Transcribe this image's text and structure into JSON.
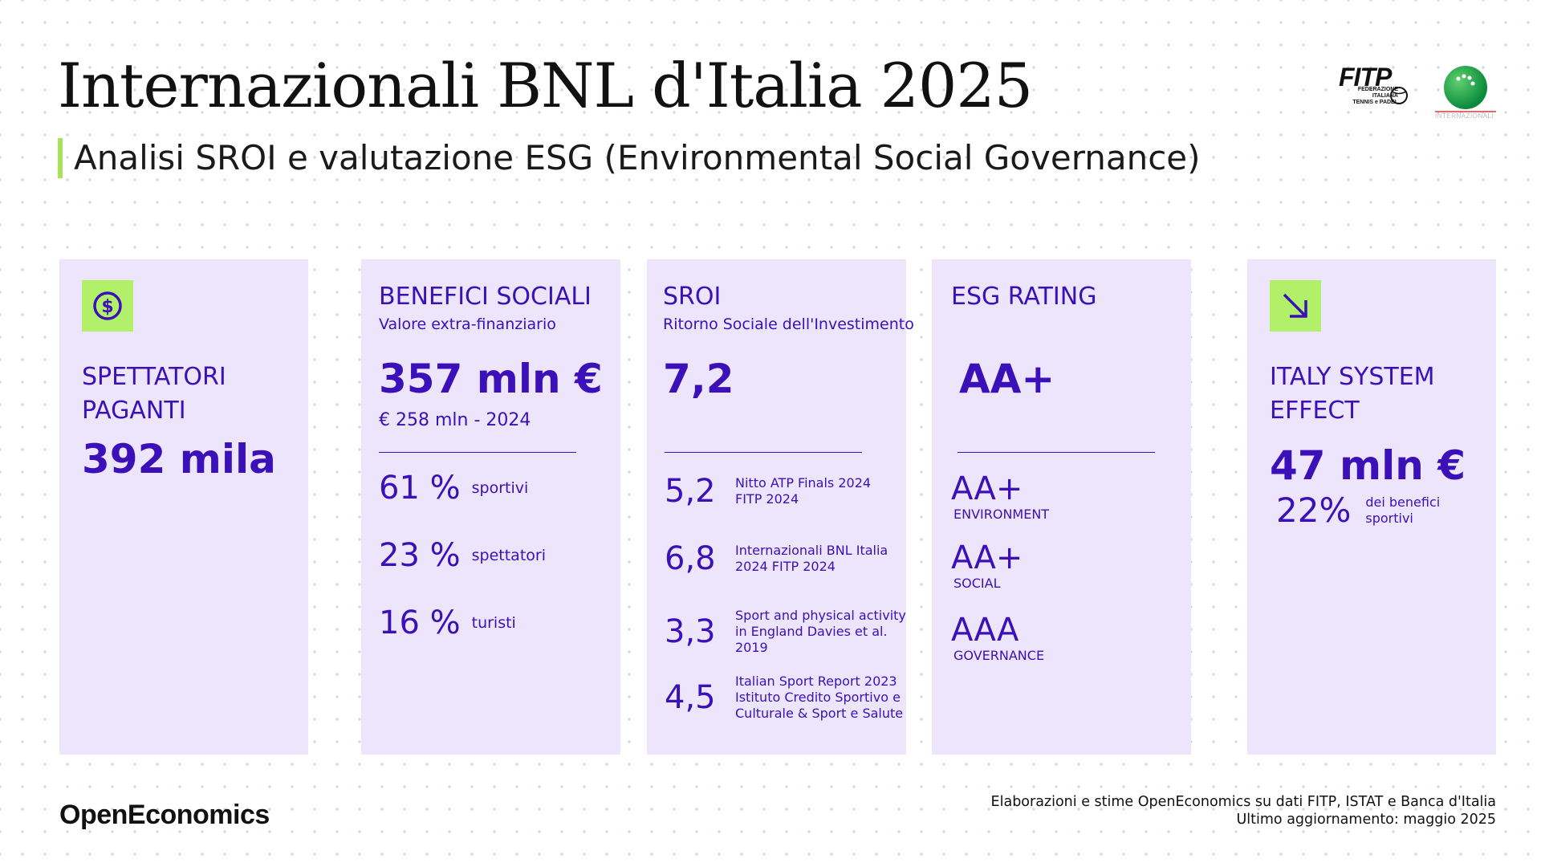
{
  "header": {
    "title": "Internazionali BNL d'Italia 2025",
    "subtitle": "Analisi SROI e valutazione ESG (Environmental Social Governance)"
  },
  "logos": {
    "fitp_word": "FITP",
    "fitp_subtitle_lines": [
      "FEDERAZIONE",
      "ITALIANA",
      "TENNIS e PADEL"
    ],
    "internazionali_text": "INTERNAZIONALI BNL D'ITALIA"
  },
  "colors": {
    "accent": "#3b10b8",
    "card_bg": "#ece5fc",
    "icon_bg": "#b3f06a"
  },
  "spettatori": {
    "icon": "dollar-coin-icon",
    "label_line1": "SPETTATORI",
    "label_line2": "PAGANTI",
    "value": "392 mila"
  },
  "benefici": {
    "label": "BENEFICI SOCIALI",
    "sub": "Valore extra-finanziario",
    "value": "357 mln €",
    "previous": "€ 258 mln - 2024",
    "breakdown": [
      {
        "pct": "61 %",
        "label": "sportivi"
      },
      {
        "pct": "23 %",
        "label": "spettatori"
      },
      {
        "pct": "16 %",
        "label": "turisti"
      }
    ]
  },
  "sroi": {
    "label": "SROI",
    "sub": "Ritorno Sociale dell'Investimento",
    "value": "7,2",
    "comparisons": [
      {
        "value": "5,2",
        "lines": [
          "Nitto ATP Finals 2024",
          "FITP 2024"
        ]
      },
      {
        "value": "6,8",
        "lines": [
          "Internazionali BNL Italia",
          "2024 FITP 2024"
        ]
      },
      {
        "value": "3,3",
        "lines": [
          "Sport and physical activity",
          "in England Davies et al.",
          "2019"
        ]
      },
      {
        "value": "4,5",
        "lines": [
          "Italian Sport Report 2023",
          "Istituto Credito Sportivo e",
          "Culturale & Sport e Salute"
        ]
      }
    ]
  },
  "esg": {
    "label": "ESG RATING",
    "value": "AA+",
    "items": [
      {
        "rating": "AA+",
        "category": "ENVIRONMENT"
      },
      {
        "rating": "AA+",
        "category": "SOCIAL"
      },
      {
        "rating": "AAA",
        "category": "GOVERNANCE"
      }
    ]
  },
  "italy": {
    "icon": "arrow-down-right-icon",
    "label_line1": "ITALY SYSTEM",
    "label_line2": "EFFECT",
    "value": "47 mln €",
    "pct": "22%",
    "pct_label_line1": "dei benefici",
    "pct_label_line2": "sportivi"
  },
  "footer": {
    "brand": "OpenEconomics",
    "source_line1": "Elaborazioni e stime OpenEconomics su dati FITP, ISTAT e Banca d'Italia",
    "source_line2": "Ultimo aggiornamento: maggio 2025"
  }
}
